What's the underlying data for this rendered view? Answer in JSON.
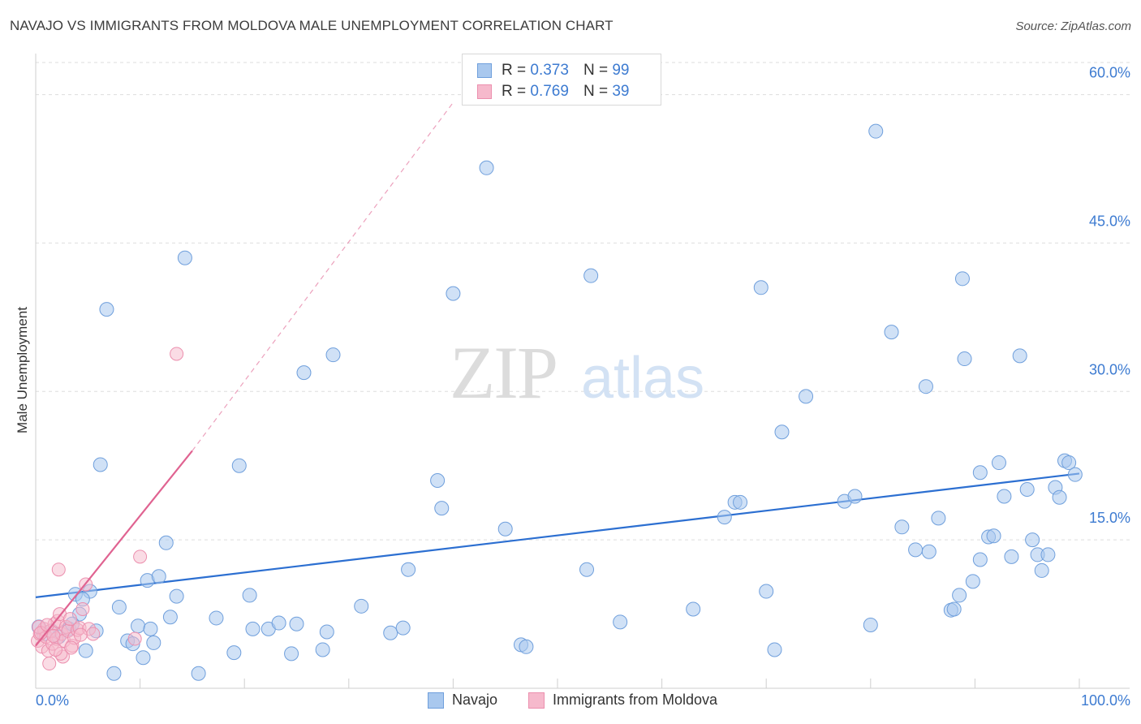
{
  "header": {
    "title": "NAVAJO VS IMMIGRANTS FROM MOLDOVA MALE UNEMPLOYMENT CORRELATION CHART",
    "source": "Source: ZipAtlas.com"
  },
  "watermark": {
    "zip": "ZIP",
    "atlas": "atlas"
  },
  "legend": {
    "r_label": "R =",
    "n_label": "N =",
    "items": [
      {
        "name": "Navajo",
        "r": "0.373",
        "n": "99"
      },
      {
        "name": "Immigrants from Moldova",
        "r": "0.769",
        "n": "39"
      }
    ]
  },
  "chart_data": {
    "type": "scatter",
    "title": "NAVAJO VS IMMIGRANTS FROM MOLDOVA MALE UNEMPLOYMENT CORRELATION CHART",
    "xlabel": "",
    "ylabel": "Male Unemployment",
    "xlim": [
      0,
      100
    ],
    "ylim": [
      0,
      63
    ],
    "x_tick_labels": {
      "left": "0.0%",
      "right": "100.0%"
    },
    "y_ticks": [
      {
        "value": 15,
        "label": "15.0%"
      },
      {
        "value": 30,
        "label": "30.0%"
      },
      {
        "value": 45,
        "label": "45.0%"
      },
      {
        "value": 60,
        "label": "60.0%"
      }
    ],
    "grid": true,
    "colors": {
      "navajo_fill": "#a9c8ee",
      "navajo_stroke": "#6f9fdc",
      "navajo_line": "#2c6fd1",
      "moldova_fill": "#f6b9cc",
      "moldova_stroke": "#ec8fae",
      "moldova_line": "#e06391",
      "axis_label": "#3d7bd1",
      "grid": "#dddddd"
    },
    "series": [
      {
        "name": "Navajo",
        "trend": {
          "x0": 0,
          "y0": 9.2,
          "x1": 100,
          "y1": 21.7
        },
        "points": [
          [
            0.3,
            6.2
          ],
          [
            0.8,
            5.5
          ],
          [
            1.5,
            5.8
          ],
          [
            2.2,
            5.2
          ],
          [
            3.2,
            6.0
          ],
          [
            3.8,
            9.5
          ],
          [
            4.2,
            7.5
          ],
          [
            5.2,
            9.8
          ],
          [
            5.8,
            5.8
          ],
          [
            4.8,
            3.8
          ],
          [
            6.2,
            22.6
          ],
          [
            6.8,
            38.3
          ],
          [
            7.5,
            1.5
          ],
          [
            8.0,
            8.2
          ],
          [
            8.8,
            4.8
          ],
          [
            9.8,
            6.3
          ],
          [
            9.3,
            4.5
          ],
          [
            10.3,
            3.1
          ],
          [
            10.7,
            10.9
          ],
          [
            11.3,
            4.6
          ],
          [
            11.8,
            11.3
          ],
          [
            12.5,
            14.7
          ],
          [
            12.9,
            7.2
          ],
          [
            13.5,
            9.3
          ],
          [
            14.3,
            43.5
          ],
          [
            15.6,
            1.5
          ],
          [
            17.3,
            7.1
          ],
          [
            19.0,
            3.6
          ],
          [
            19.5,
            22.5
          ],
          [
            20.5,
            9.4
          ],
          [
            20.8,
            6.0
          ],
          [
            22.3,
            6.0
          ],
          [
            23.3,
            6.6
          ],
          [
            24.5,
            3.5
          ],
          [
            25.0,
            6.5
          ],
          [
            25.7,
            31.9
          ],
          [
            27.5,
            3.9
          ],
          [
            27.9,
            5.7
          ],
          [
            28.5,
            33.7
          ],
          [
            31.2,
            8.3
          ],
          [
            34.0,
            5.6
          ],
          [
            35.2,
            6.1
          ],
          [
            35.7,
            12.0
          ],
          [
            38.5,
            21.0
          ],
          [
            38.9,
            18.2
          ],
          [
            40.0,
            39.9
          ],
          [
            43.2,
            52.6
          ],
          [
            45.0,
            16.1
          ],
          [
            46.5,
            4.4
          ],
          [
            47.0,
            4.2
          ],
          [
            52.8,
            12.0
          ],
          [
            53.2,
            41.7
          ],
          [
            56.0,
            6.7
          ],
          [
            63.0,
            8.0
          ],
          [
            66.0,
            17.3
          ],
          [
            67.0,
            18.8
          ],
          [
            67.5,
            18.8
          ],
          [
            70.0,
            9.8
          ],
          [
            69.5,
            40.5
          ],
          [
            70.8,
            3.9
          ],
          [
            71.5,
            25.9
          ],
          [
            73.8,
            29.5
          ],
          [
            77.5,
            18.9
          ],
          [
            78.5,
            19.4
          ],
          [
            80.0,
            6.4
          ],
          [
            80.5,
            56.3
          ],
          [
            82.0,
            36.0
          ],
          [
            83.0,
            16.3
          ],
          [
            84.3,
            14.0
          ],
          [
            85.3,
            30.5
          ],
          [
            85.6,
            13.8
          ],
          [
            86.5,
            17.2
          ],
          [
            87.7,
            7.9
          ],
          [
            88.0,
            8.0
          ],
          [
            88.5,
            9.4
          ],
          [
            89.0,
            33.3
          ],
          [
            88.8,
            41.4
          ],
          [
            89.8,
            10.8
          ],
          [
            90.5,
            13.0
          ],
          [
            90.5,
            21.8
          ],
          [
            91.3,
            15.3
          ],
          [
            91.8,
            15.4
          ],
          [
            92.3,
            22.8
          ],
          [
            92.8,
            19.4
          ],
          [
            93.5,
            13.3
          ],
          [
            94.3,
            33.6
          ],
          [
            95.0,
            20.1
          ],
          [
            95.5,
            15.0
          ],
          [
            96.0,
            13.5
          ],
          [
            96.4,
            11.9
          ],
          [
            97.0,
            13.5
          ],
          [
            97.7,
            20.3
          ],
          [
            98.1,
            19.3
          ],
          [
            98.6,
            23.0
          ],
          [
            99.0,
            22.8
          ],
          [
            99.6,
            21.6
          ],
          [
            4.5,
            9.0
          ],
          [
            11.0,
            6.0
          ],
          [
            3.5,
            6.5
          ]
        ]
      },
      {
        "name": "Immigrants from Moldova",
        "trend": {
          "x0": 0,
          "y0": 4.3,
          "x1": 15,
          "y1": 24.0,
          "dash_x1": 40,
          "dash_y1": 59.2
        },
        "points": [
          [
            0.2,
            4.8
          ],
          [
            0.4,
            5.5
          ],
          [
            0.6,
            4.2
          ],
          [
            0.8,
            6.0
          ],
          [
            1.0,
            5.2
          ],
          [
            1.2,
            3.8
          ],
          [
            1.4,
            5.8
          ],
          [
            1.6,
            4.5
          ],
          [
            1.8,
            6.5
          ],
          [
            2.0,
            5.0
          ],
          [
            2.1,
            6.8
          ],
          [
            2.3,
            7.5
          ],
          [
            2.5,
            5.5
          ],
          [
            2.7,
            4.8
          ],
          [
            2.9,
            6.2
          ],
          [
            3.1,
            5.8
          ],
          [
            3.3,
            7.0
          ],
          [
            3.5,
            4.3
          ],
          [
            3.7,
            5.1
          ],
          [
            4.0,
            5.9
          ],
          [
            4.2,
            6.1
          ],
          [
            4.5,
            8.0
          ],
          [
            4.8,
            10.5
          ],
          [
            5.1,
            6.0
          ],
          [
            5.5,
            5.5
          ],
          [
            2.2,
            12.0
          ],
          [
            2.6,
            3.2
          ],
          [
            2.4,
            3.5
          ],
          [
            1.9,
            3.9
          ],
          [
            1.3,
            2.5
          ],
          [
            9.5,
            5.0
          ],
          [
            10.0,
            13.3
          ],
          [
            13.5,
            33.8
          ],
          [
            0.3,
            6.2
          ],
          [
            0.5,
            5.6
          ],
          [
            1.1,
            6.4
          ],
          [
            1.7,
            5.3
          ],
          [
            3.4,
            4.1
          ],
          [
            4.3,
            5.4
          ]
        ]
      }
    ]
  }
}
